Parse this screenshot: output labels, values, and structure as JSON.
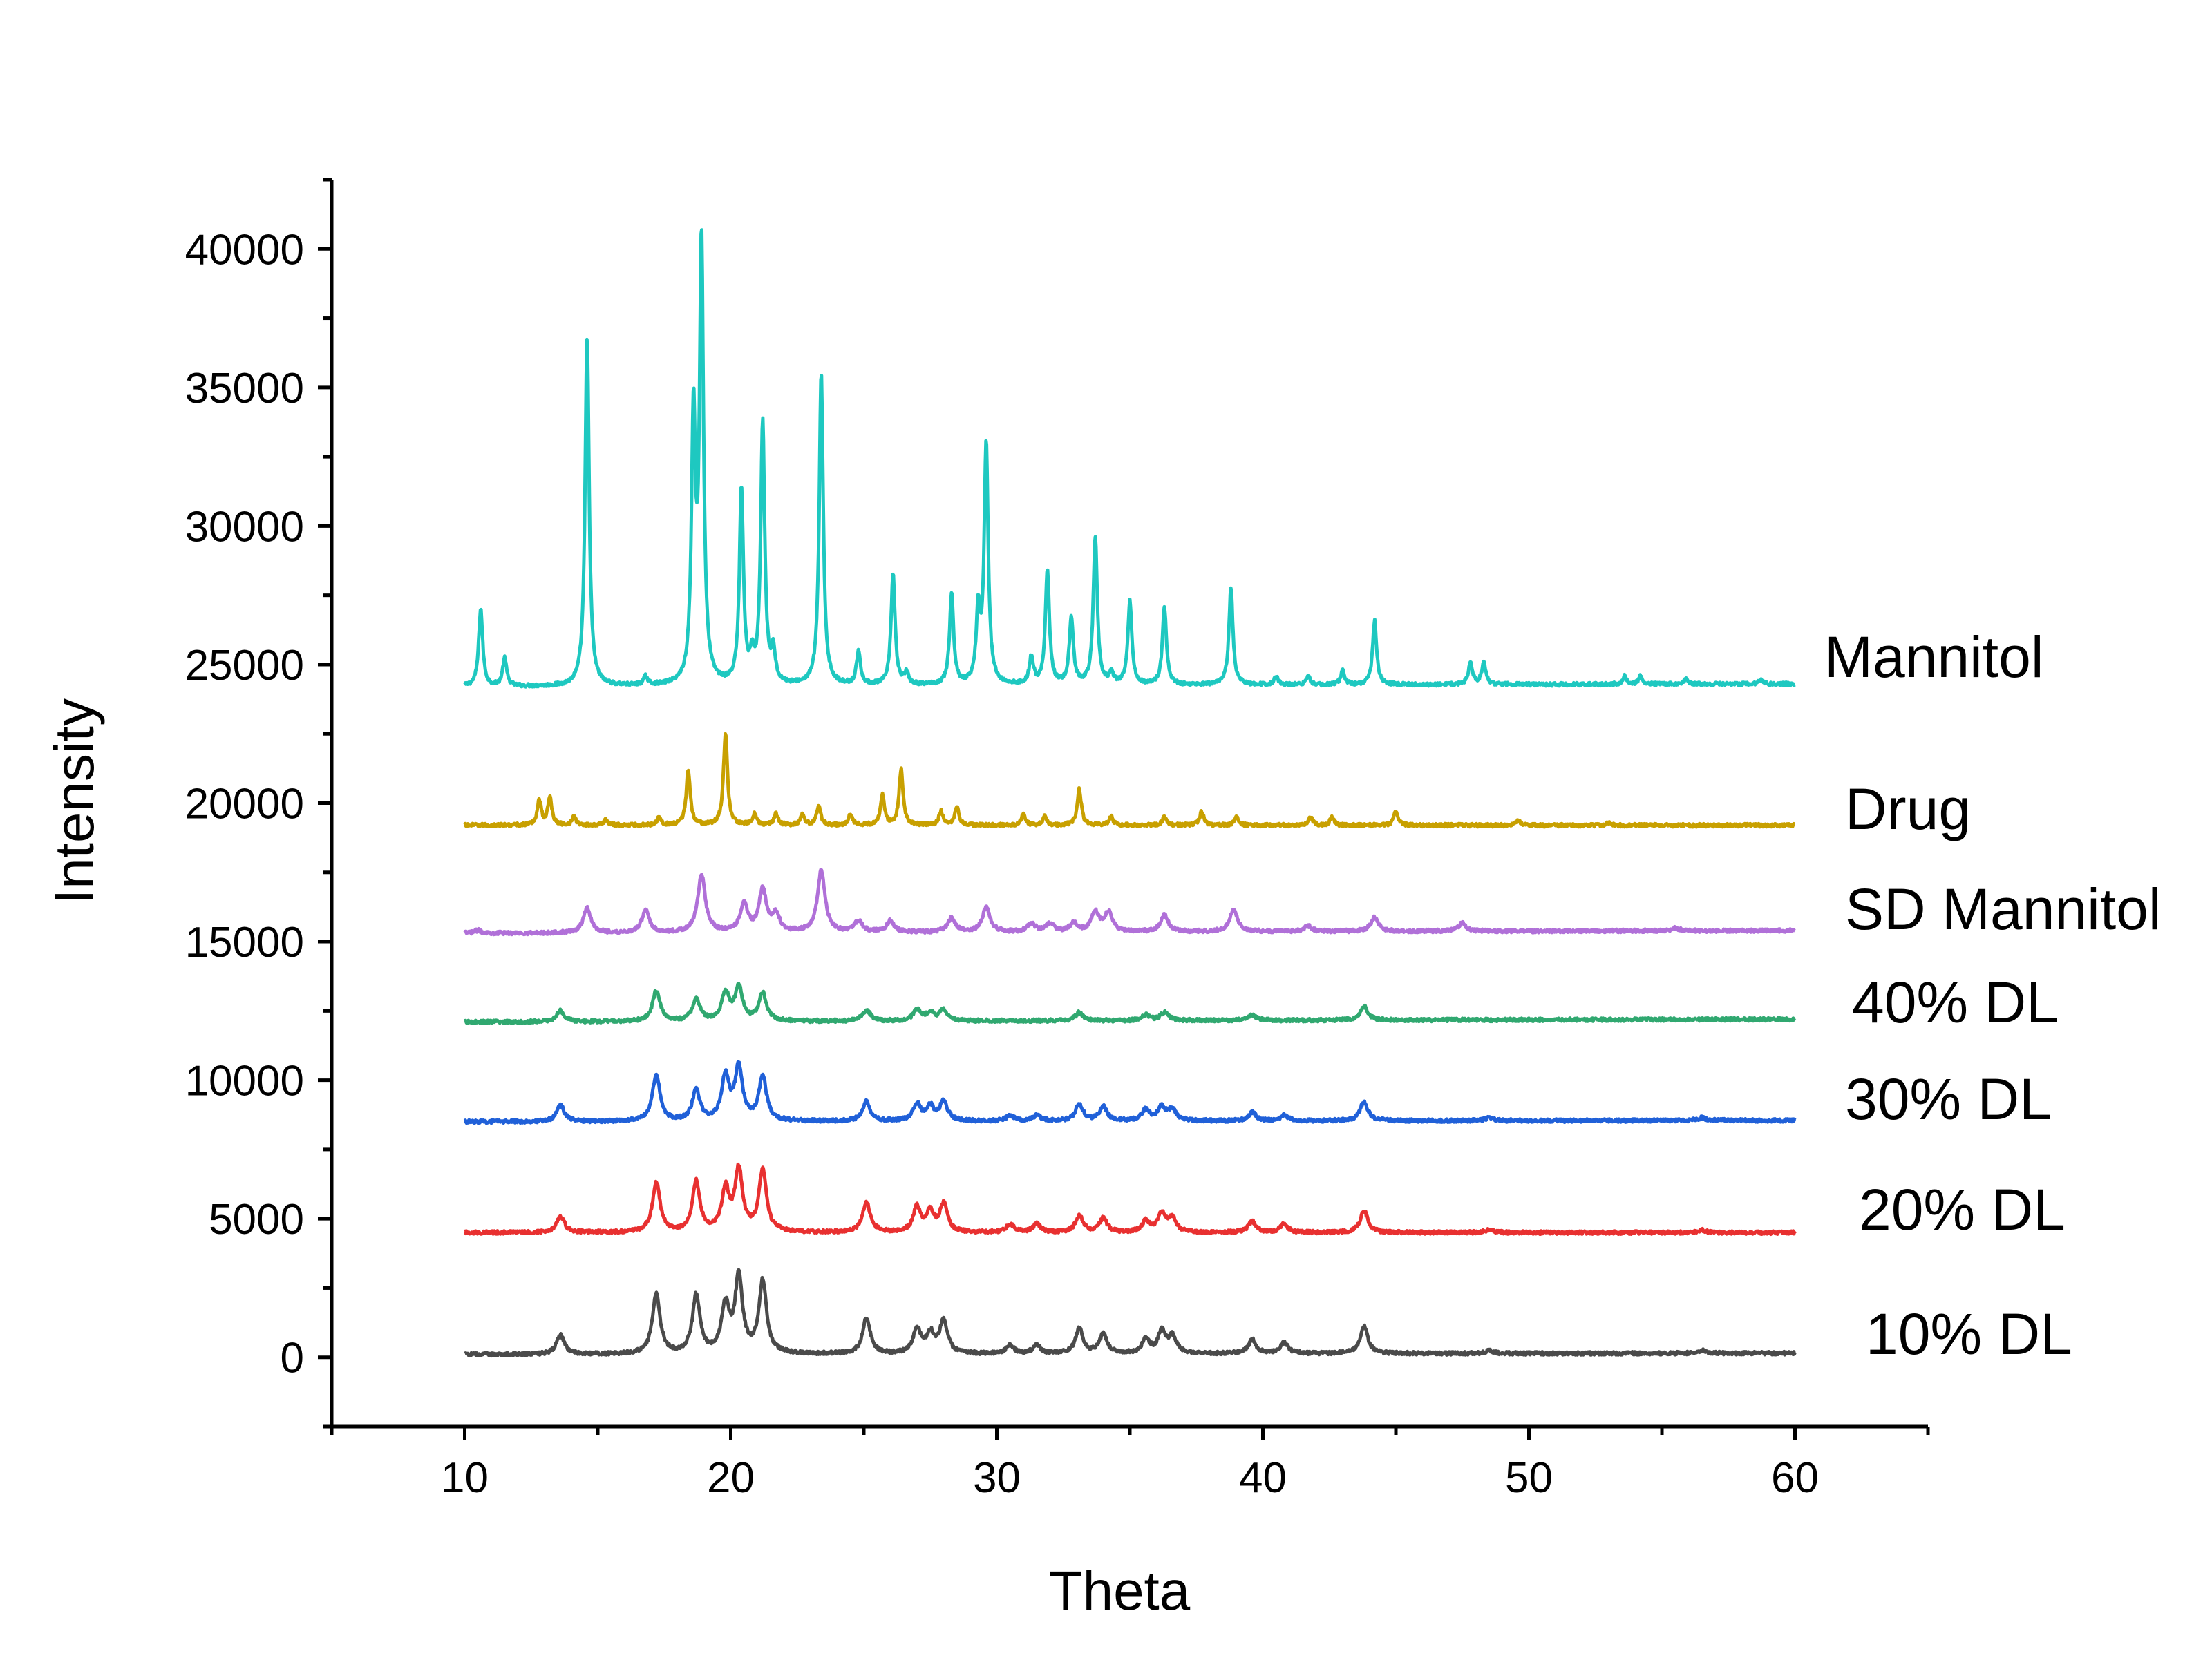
{
  "chart_data": {
    "type": "line",
    "title": "",
    "xlabel": "Theta",
    "ylabel": "Intensity",
    "xlim": [
      5,
      65
    ],
    "ylim": [
      -2500,
      42500
    ],
    "x_ticks": [
      10,
      20,
      30,
      40,
      50,
      60
    ],
    "x_tick_labels": [
      "10",
      "20",
      "30",
      "40",
      "50",
      "60"
    ],
    "y_ticks": [
      0,
      5000,
      10000,
      15000,
      20000,
      25000,
      30000,
      35000,
      40000
    ],
    "y_tick_labels": [
      "0",
      "5000",
      "10000",
      "15000",
      "20000",
      "25000",
      "30000",
      "35000",
      "40000"
    ],
    "x_range": [
      10,
      60
    ],
    "grid": false,
    "series": [
      {
        "name": "Mannitol",
        "color": "#1ec8c0",
        "baseline": 24200,
        "end_baseline": 24300,
        "peaks": [
          [
            10.6,
            2800
          ],
          [
            11.5,
            1000
          ],
          [
            14.6,
            12600
          ],
          [
            16.8,
            300
          ],
          [
            18.6,
            9500
          ],
          [
            18.9,
            15800
          ],
          [
            20.4,
            7000
          ],
          [
            20.8,
            800
          ],
          [
            21.2,
            9400
          ],
          [
            21.6,
            1100
          ],
          [
            23.4,
            11200
          ],
          [
            24.8,
            1200
          ],
          [
            26.1,
            4000
          ],
          [
            26.6,
            400
          ],
          [
            28.3,
            3300
          ],
          [
            29.3,
            2500
          ],
          [
            29.6,
            8700
          ],
          [
            31.3,
            1000
          ],
          [
            31.9,
            4100
          ],
          [
            32.8,
            2400
          ],
          [
            33.7,
            5300
          ],
          [
            34.3,
            400
          ],
          [
            35.0,
            3000
          ],
          [
            36.3,
            2800
          ],
          [
            38.8,
            3500
          ],
          [
            40.5,
            300
          ],
          [
            41.7,
            300
          ],
          [
            43.0,
            500
          ],
          [
            44.2,
            2300
          ],
          [
            47.8,
            800
          ],
          [
            48.3,
            800
          ],
          [
            53.6,
            300
          ],
          [
            54.2,
            300
          ],
          [
            55.9,
            200
          ],
          [
            58.7,
            150
          ]
        ]
      },
      {
        "name": "Drug",
        "color": "#c8a000",
        "baseline": 19200,
        "end_baseline": 19200,
        "peaks": [
          [
            12.8,
            900
          ],
          [
            13.2,
            1000
          ],
          [
            14.1,
            300
          ],
          [
            15.3,
            200
          ],
          [
            17.3,
            300
          ],
          [
            18.4,
            2000
          ],
          [
            19.8,
            3300
          ],
          [
            20.9,
            400
          ],
          [
            21.7,
            400
          ],
          [
            22.7,
            400
          ],
          [
            23.3,
            700
          ],
          [
            24.5,
            400
          ],
          [
            25.7,
            1100
          ],
          [
            26.4,
            2000
          ],
          [
            27.9,
            500
          ],
          [
            28.5,
            700
          ],
          [
            31.0,
            400
          ],
          [
            31.8,
            300
          ],
          [
            33.1,
            1300
          ],
          [
            34.3,
            300
          ],
          [
            36.3,
            300
          ],
          [
            37.7,
            500
          ],
          [
            39.0,
            300
          ],
          [
            41.8,
            300
          ],
          [
            42.6,
            300
          ],
          [
            45.0,
            500
          ],
          [
            49.6,
            150
          ],
          [
            53.0,
            100
          ]
        ]
      },
      {
        "name": "SD Mannitol",
        "color": "#b070d8",
        "baseline": 15300,
        "end_baseline": 15400,
        "peaks": [
          [
            10.5,
            100
          ],
          [
            14.6,
            900
          ],
          [
            16.8,
            800
          ],
          [
            18.9,
            2100
          ],
          [
            20.5,
            1000
          ],
          [
            21.2,
            1500
          ],
          [
            21.7,
            600
          ],
          [
            23.4,
            2200
          ],
          [
            24.8,
            400
          ],
          [
            26.0,
            400
          ],
          [
            28.3,
            500
          ],
          [
            29.6,
            900
          ],
          [
            31.3,
            300
          ],
          [
            32.0,
            300
          ],
          [
            32.9,
            300
          ],
          [
            33.7,
            700
          ],
          [
            34.2,
            700
          ],
          [
            36.3,
            600
          ],
          [
            38.9,
            800
          ],
          [
            41.7,
            200
          ],
          [
            44.2,
            500
          ],
          [
            47.5,
            300
          ],
          [
            55.5,
            100
          ]
        ]
      },
      {
        "name": "40% DL",
        "color": "#30a870",
        "baseline": 12100,
        "end_baseline": 12200,
        "peaks": [
          [
            13.6,
            400
          ],
          [
            17.2,
            1100
          ],
          [
            18.7,
            800
          ],
          [
            19.8,
            1000
          ],
          [
            20.3,
            1200
          ],
          [
            21.2,
            1000
          ],
          [
            25.1,
            400
          ],
          [
            27.0,
            400
          ],
          [
            27.5,
            300
          ],
          [
            28.0,
            400
          ],
          [
            33.1,
            300
          ],
          [
            35.6,
            200
          ],
          [
            36.3,
            300
          ],
          [
            39.6,
            200
          ],
          [
            43.8,
            500
          ]
        ]
      },
      {
        "name": "30% DL",
        "color": "#2060d8",
        "baseline": 8500,
        "end_baseline": 8550,
        "peaks": [
          [
            13.6,
            600
          ],
          [
            17.2,
            1700
          ],
          [
            18.7,
            1100
          ],
          [
            19.8,
            1600
          ],
          [
            20.3,
            1900
          ],
          [
            21.2,
            1600
          ],
          [
            25.1,
            700
          ],
          [
            27.0,
            600
          ],
          [
            27.5,
            500
          ],
          [
            28.0,
            700
          ],
          [
            30.5,
            200
          ],
          [
            31.5,
            200
          ],
          [
            33.1,
            600
          ],
          [
            34.0,
            500
          ],
          [
            35.6,
            400
          ],
          [
            36.2,
            500
          ],
          [
            36.6,
            400
          ],
          [
            39.6,
            300
          ],
          [
            40.8,
            200
          ],
          [
            43.8,
            700
          ],
          [
            48.5,
            100
          ],
          [
            56.5,
            100
          ]
        ]
      },
      {
        "name": "20% DL",
        "color": "#e83030",
        "baseline": 4500,
        "end_baseline": 4500,
        "peaks": [
          [
            13.6,
            600
          ],
          [
            17.2,
            1800
          ],
          [
            18.7,
            1800
          ],
          [
            19.8,
            1500
          ],
          [
            20.3,
            2200
          ],
          [
            21.2,
            2200
          ],
          [
            25.1,
            1100
          ],
          [
            27.0,
            900
          ],
          [
            27.5,
            700
          ],
          [
            28.0,
            1000
          ],
          [
            30.5,
            300
          ],
          [
            31.5,
            300
          ],
          [
            33.1,
            600
          ],
          [
            34.0,
            500
          ],
          [
            35.6,
            400
          ],
          [
            36.2,
            700
          ],
          [
            36.6,
            500
          ],
          [
            39.6,
            400
          ],
          [
            40.8,
            300
          ],
          [
            43.8,
            800
          ],
          [
            48.5,
            100
          ],
          [
            56.5,
            100
          ]
        ]
      },
      {
        "name": "10% DL",
        "color": "#4a4a4a",
        "baseline": 100,
        "end_baseline": 150,
        "peaks": [
          [
            13.6,
            700
          ],
          [
            17.2,
            2200
          ],
          [
            18.7,
            2100
          ],
          [
            19.8,
            1700
          ],
          [
            20.3,
            2700
          ],
          [
            21.2,
            2600
          ],
          [
            25.1,
            1300
          ],
          [
            27.0,
            900
          ],
          [
            27.5,
            700
          ],
          [
            28.0,
            1200
          ],
          [
            30.5,
            300
          ],
          [
            31.5,
            300
          ],
          [
            33.1,
            900
          ],
          [
            34.0,
            700
          ],
          [
            35.6,
            500
          ],
          [
            36.2,
            800
          ],
          [
            36.6,
            600
          ],
          [
            39.6,
            500
          ],
          [
            40.8,
            400
          ],
          [
            43.8,
            1000
          ],
          [
            48.5,
            100
          ],
          [
            56.5,
            100
          ]
        ]
      }
    ]
  }
}
